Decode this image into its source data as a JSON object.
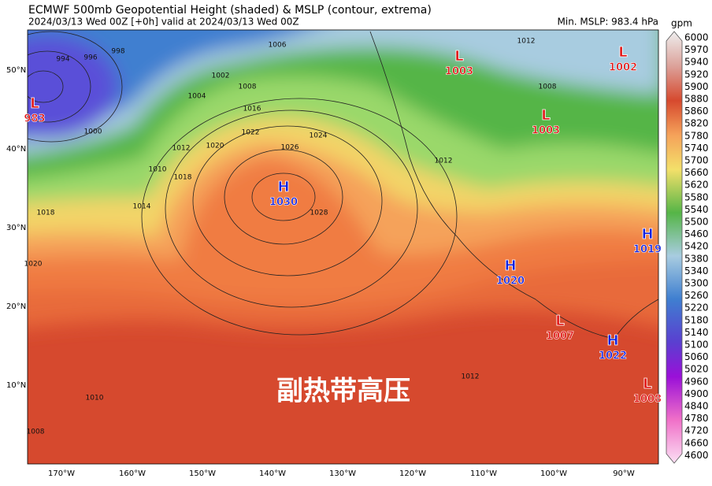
{
  "header": {
    "title": "ECMWF 500mb Geopotential Height (shaded) & MSLP (contour, extrema)",
    "subtitle": "2024/03/13 Wed 00Z [+0h] valid at 2024/03/13 Wed 00Z",
    "min_mslp": "Min. MSLP: 983.4 hPa"
  },
  "colorbar": {
    "unit": "gpm",
    "labels": [
      6000,
      5970,
      5940,
      5920,
      5900,
      5880,
      5860,
      5820,
      5780,
      5740,
      5700,
      5660,
      5620,
      5580,
      5540,
      5500,
      5460,
      5420,
      5380,
      5340,
      5300,
      5260,
      5220,
      5180,
      5140,
      5100,
      5060,
      5020,
      4960,
      4900,
      4840,
      4780,
      4720,
      4660,
      4600
    ]
  },
  "latitude_labels": [
    "50°N",
    "40°N",
    "30°N",
    "20°N",
    "10°N"
  ],
  "longitude_labels": [
    "170°W",
    "160°W",
    "150°W",
    "140°W",
    "130°W",
    "120°W",
    "110°W",
    "100°W",
    "90°W"
  ],
  "pressure_centers": [
    {
      "type": "L",
      "value": 983
    },
    {
      "type": "H",
      "value": 1030
    },
    {
      "type": "L",
      "value": 1003
    },
    {
      "type": "L",
      "value": 1002
    },
    {
      "type": "L",
      "value": 1003
    },
    {
      "type": "H",
      "value": 1019
    },
    {
      "type": "H",
      "value": 1020
    },
    {
      "type": "L",
      "value": 1007
    },
    {
      "type": "H",
      "value": 1022
    },
    {
      "type": "L",
      "value": 1008
    }
  ],
  "contour_labels": [
    994,
    996,
    998,
    1000,
    1002,
    1004,
    1006,
    1008,
    1010,
    1012,
    1014,
    1016,
    1018,
    1020,
    1022,
    1024,
    1026,
    1028,
    1018,
    1020,
    1010,
    1008,
    1012,
    1012,
    1012,
    1008
  ],
  "annotation": "副热带高压"
}
